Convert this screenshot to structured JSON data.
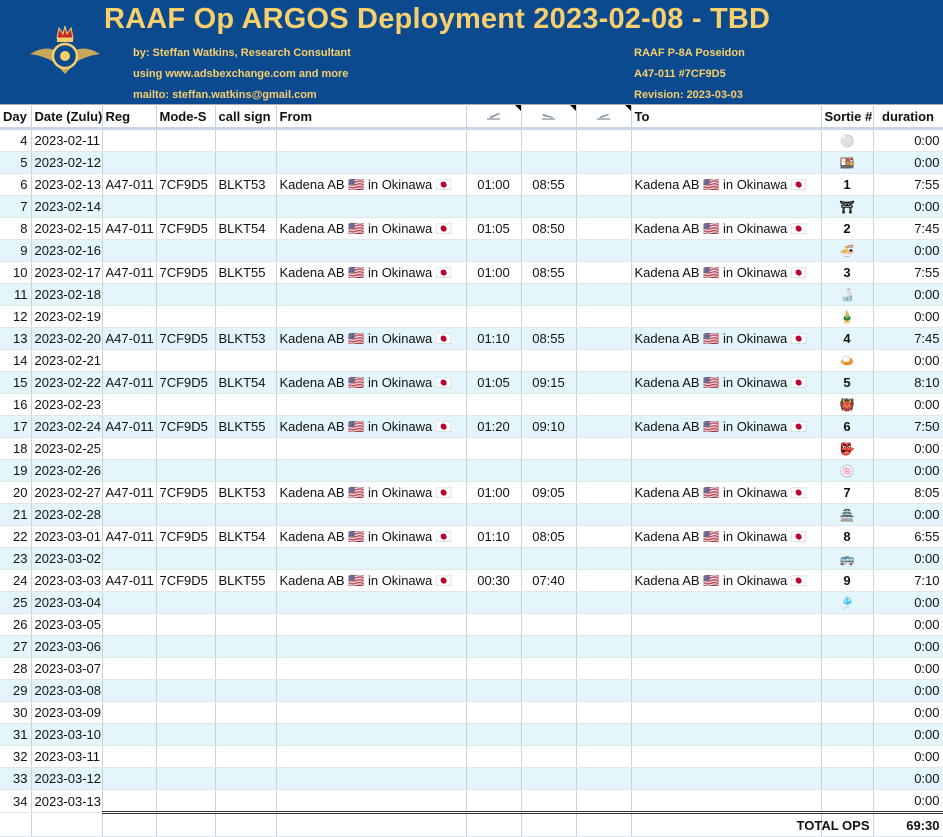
{
  "header": {
    "title": "RAAF Op ARGOS Deployment 2023-02-08 - TBD",
    "author": "by: Steffan Watkins, Research Consultant",
    "source": "using www.adsbexchange.com and more",
    "contact": "mailto: steffan.watkins@gmail.com",
    "aircraft": "RAAF P-8A Poseidon",
    "tail": "A47-011 #7CF9D5",
    "revision": "Revision: 2023-03-03"
  },
  "columns": {
    "day": "Day",
    "date": "Date (Zulu)",
    "reg": "Reg",
    "modes": "Mode-S",
    "callsign": "call sign",
    "from": "From",
    "to": "To",
    "sortie": "Sortie #",
    "duration": "duration",
    "takeoff_icon": "takeoff-icon",
    "landing_icon": "landing-icon",
    "transit_icon": "transit-icon"
  },
  "location": "Kadena AB 🇺🇸 in Okinawa 🇯🇵",
  "rows": [
    {
      "day": "4",
      "date": "2023-02-11",
      "reg": "",
      "modes": "",
      "call": "",
      "from": "",
      "dep": "",
      "arr": "",
      "to": "",
      "sortie": "",
      "sortie_icon": "⚪",
      "duration": "0:00"
    },
    {
      "day": "5",
      "date": "2023-02-12",
      "reg": "",
      "modes": "",
      "call": "",
      "from": "",
      "dep": "",
      "arr": "",
      "to": "",
      "sortie": "",
      "sortie_icon": "🍱",
      "duration": "0:00"
    },
    {
      "day": "6",
      "date": "2023-02-13",
      "reg": "A47-011",
      "modes": "7CF9D5",
      "call": "BLKT53",
      "from": "Kadena AB 🇺🇸 in Okinawa 🇯🇵",
      "dep": "01:00",
      "arr": "08:55",
      "to": "Kadena AB 🇺🇸 in Okinawa 🇯🇵",
      "sortie": "1",
      "sortie_icon": "",
      "duration": "7:55"
    },
    {
      "day": "7",
      "date": "2023-02-14",
      "reg": "",
      "modes": "",
      "call": "",
      "from": "",
      "dep": "",
      "arr": "",
      "to": "",
      "sortie": "",
      "sortie_icon": "⛩",
      "duration": "0:00"
    },
    {
      "day": "8",
      "date": "2023-02-15",
      "reg": "A47-011",
      "modes": "7CF9D5",
      "call": "BLKT54",
      "from": "Kadena AB 🇺🇸 in Okinawa 🇯🇵",
      "dep": "01:05",
      "arr": "08:50",
      "to": "Kadena AB 🇺🇸 in Okinawa 🇯🇵",
      "sortie": "2",
      "sortie_icon": "",
      "duration": "7:45"
    },
    {
      "day": "9",
      "date": "2023-02-16",
      "reg": "",
      "modes": "",
      "call": "",
      "from": "",
      "dep": "",
      "arr": "",
      "to": "",
      "sortie": "",
      "sortie_icon": "🍜",
      "duration": "0:00"
    },
    {
      "day": "10",
      "date": "2023-02-17",
      "reg": "A47-011",
      "modes": "7CF9D5",
      "call": "BLKT55",
      "from": "Kadena AB 🇺🇸 in Okinawa 🇯🇵",
      "dep": "01:00",
      "arr": "08:55",
      "to": "Kadena AB 🇺🇸 in Okinawa 🇯🇵",
      "sortie": "3",
      "sortie_icon": "",
      "duration": "7:55"
    },
    {
      "day": "11",
      "date": "2023-02-18",
      "reg": "",
      "modes": "",
      "call": "",
      "from": "",
      "dep": "",
      "arr": "",
      "to": "",
      "sortie": "",
      "sortie_icon": "🍶",
      "duration": "0:00"
    },
    {
      "day": "12",
      "date": "2023-02-19",
      "reg": "",
      "modes": "",
      "call": "",
      "from": "",
      "dep": "",
      "arr": "",
      "to": "",
      "sortie": "",
      "sortie_icon": "🎍",
      "duration": "0:00"
    },
    {
      "day": "13",
      "date": "2023-02-20",
      "reg": "A47-011",
      "modes": "7CF9D5",
      "call": "BLKT53",
      "from": "Kadena AB 🇺🇸 in Okinawa 🇯🇵",
      "dep": "01:10",
      "arr": "08:55",
      "to": "Kadena AB 🇺🇸 in Okinawa 🇯🇵",
      "sortie": "4",
      "sortie_icon": "",
      "duration": "7:45"
    },
    {
      "day": "14",
      "date": "2023-02-21",
      "reg": "",
      "modes": "",
      "call": "",
      "from": "",
      "dep": "",
      "arr": "",
      "to": "",
      "sortie": "",
      "sortie_icon": "🍛",
      "duration": "0:00"
    },
    {
      "day": "15",
      "date": "2023-02-22",
      "reg": "A47-011",
      "modes": "7CF9D5",
      "call": "BLKT54",
      "from": "Kadena AB 🇺🇸 in Okinawa 🇯🇵",
      "dep": "01:05",
      "arr": "09:15",
      "to": "Kadena AB 🇺🇸 in Okinawa 🇯🇵",
      "sortie": "5",
      "sortie_icon": "",
      "duration": "8:10"
    },
    {
      "day": "16",
      "date": "2023-02-23",
      "reg": "",
      "modes": "",
      "call": "",
      "from": "",
      "dep": "",
      "arr": "",
      "to": "",
      "sortie": "",
      "sortie_icon": "👹",
      "duration": "0:00"
    },
    {
      "day": "17",
      "date": "2023-02-24",
      "reg": "A47-011",
      "modes": "7CF9D5",
      "call": "BLKT55",
      "from": "Kadena AB 🇺🇸 in Okinawa 🇯🇵",
      "dep": "01:20",
      "arr": "09:10",
      "to": "Kadena AB 🇺🇸 in Okinawa 🇯🇵",
      "sortie": "6",
      "sortie_icon": "",
      "duration": "7:50"
    },
    {
      "day": "18",
      "date": "2023-02-25",
      "reg": "",
      "modes": "",
      "call": "",
      "from": "",
      "dep": "",
      "arr": "",
      "to": "",
      "sortie": "",
      "sortie_icon": "👺",
      "duration": "0:00"
    },
    {
      "day": "19",
      "date": "2023-02-26",
      "reg": "",
      "modes": "",
      "call": "",
      "from": "",
      "dep": "",
      "arr": "",
      "to": "",
      "sortie": "",
      "sortie_icon": "🍥",
      "duration": "0:00"
    },
    {
      "day": "20",
      "date": "2023-02-27",
      "reg": "A47-011",
      "modes": "7CF9D5",
      "call": "BLKT53",
      "from": "Kadena AB 🇺🇸 in Okinawa 🇯🇵",
      "dep": "01:00",
      "arr": "09:05",
      "to": "Kadena AB 🇺🇸 in Okinawa 🇯🇵",
      "sortie": "7",
      "sortie_icon": "",
      "duration": "8:05"
    },
    {
      "day": "21",
      "date": "2023-02-28",
      "reg": "",
      "modes": "",
      "call": "",
      "from": "",
      "dep": "",
      "arr": "",
      "to": "",
      "sortie": "",
      "sortie_icon": "🏯",
      "duration": "0:00"
    },
    {
      "day": "22",
      "date": "2023-03-01",
      "reg": "A47-011",
      "modes": "7CF9D5",
      "call": "BLKT54",
      "from": "Kadena AB 🇺🇸 in Okinawa 🇯🇵",
      "dep": "01:10",
      "arr": "08:05",
      "to": "Kadena AB 🇺🇸 in Okinawa 🇯🇵",
      "sortie": "8",
      "sortie_icon": "",
      "duration": "6:55"
    },
    {
      "day": "23",
      "date": "2023-03-02",
      "reg": "",
      "modes": "",
      "call": "",
      "from": "",
      "dep": "",
      "arr": "",
      "to": "",
      "sortie": "",
      "sortie_icon": "🚌",
      "duration": "0:00"
    },
    {
      "day": "24",
      "date": "2023-03-03",
      "reg": "A47-011",
      "modes": "7CF9D5",
      "call": "BLKT55",
      "from": "Kadena AB 🇺🇸 in Okinawa 🇯🇵",
      "dep": "00:30",
      "arr": "07:40",
      "to": "Kadena AB 🇺🇸 in Okinawa 🇯🇵",
      "sortie": "9",
      "sortie_icon": "",
      "duration": "7:10"
    },
    {
      "day": "25",
      "date": "2023-03-04",
      "reg": "",
      "modes": "",
      "call": "",
      "from": "",
      "dep": "",
      "arr": "",
      "to": "",
      "sortie": "",
      "sortie_icon": "🎐",
      "duration": "0:00"
    },
    {
      "day": "26",
      "date": "2023-03-05",
      "reg": "",
      "modes": "",
      "call": "",
      "from": "",
      "dep": "",
      "arr": "",
      "to": "",
      "sortie": "",
      "sortie_icon": "",
      "duration": "0:00"
    },
    {
      "day": "27",
      "date": "2023-03-06",
      "reg": "",
      "modes": "",
      "call": "",
      "from": "",
      "dep": "",
      "arr": "",
      "to": "",
      "sortie": "",
      "sortie_icon": "",
      "duration": "0:00"
    },
    {
      "day": "28",
      "date": "2023-03-07",
      "reg": "",
      "modes": "",
      "call": "",
      "from": "",
      "dep": "",
      "arr": "",
      "to": "",
      "sortie": "",
      "sortie_icon": "",
      "duration": "0:00"
    },
    {
      "day": "29",
      "date": "2023-03-08",
      "reg": "",
      "modes": "",
      "call": "",
      "from": "",
      "dep": "",
      "arr": "",
      "to": "",
      "sortie": "",
      "sortie_icon": "",
      "duration": "0:00"
    },
    {
      "day": "30",
      "date": "2023-03-09",
      "reg": "",
      "modes": "",
      "call": "",
      "from": "",
      "dep": "",
      "arr": "",
      "to": "",
      "sortie": "",
      "sortie_icon": "",
      "duration": "0:00"
    },
    {
      "day": "31",
      "date": "2023-03-10",
      "reg": "",
      "modes": "",
      "call": "",
      "from": "",
      "dep": "",
      "arr": "",
      "to": "",
      "sortie": "",
      "sortie_icon": "",
      "duration": "0:00"
    },
    {
      "day": "32",
      "date": "2023-03-11",
      "reg": "",
      "modes": "",
      "call": "",
      "from": "",
      "dep": "",
      "arr": "",
      "to": "",
      "sortie": "",
      "sortie_icon": "",
      "duration": "0:00"
    },
    {
      "day": "33",
      "date": "2023-03-12",
      "reg": "",
      "modes": "",
      "call": "",
      "from": "",
      "dep": "",
      "arr": "",
      "to": "",
      "sortie": "",
      "sortie_icon": "",
      "duration": "0:00"
    },
    {
      "day": "34",
      "date": "2023-03-13",
      "reg": "",
      "modes": "",
      "call": "",
      "from": "",
      "dep": "",
      "arr": "",
      "to": "",
      "sortie": "",
      "sortie_icon": "",
      "duration": "0:00"
    }
  ],
  "footer": {
    "label": "TOTAL OPS",
    "total": "69:30"
  }
}
